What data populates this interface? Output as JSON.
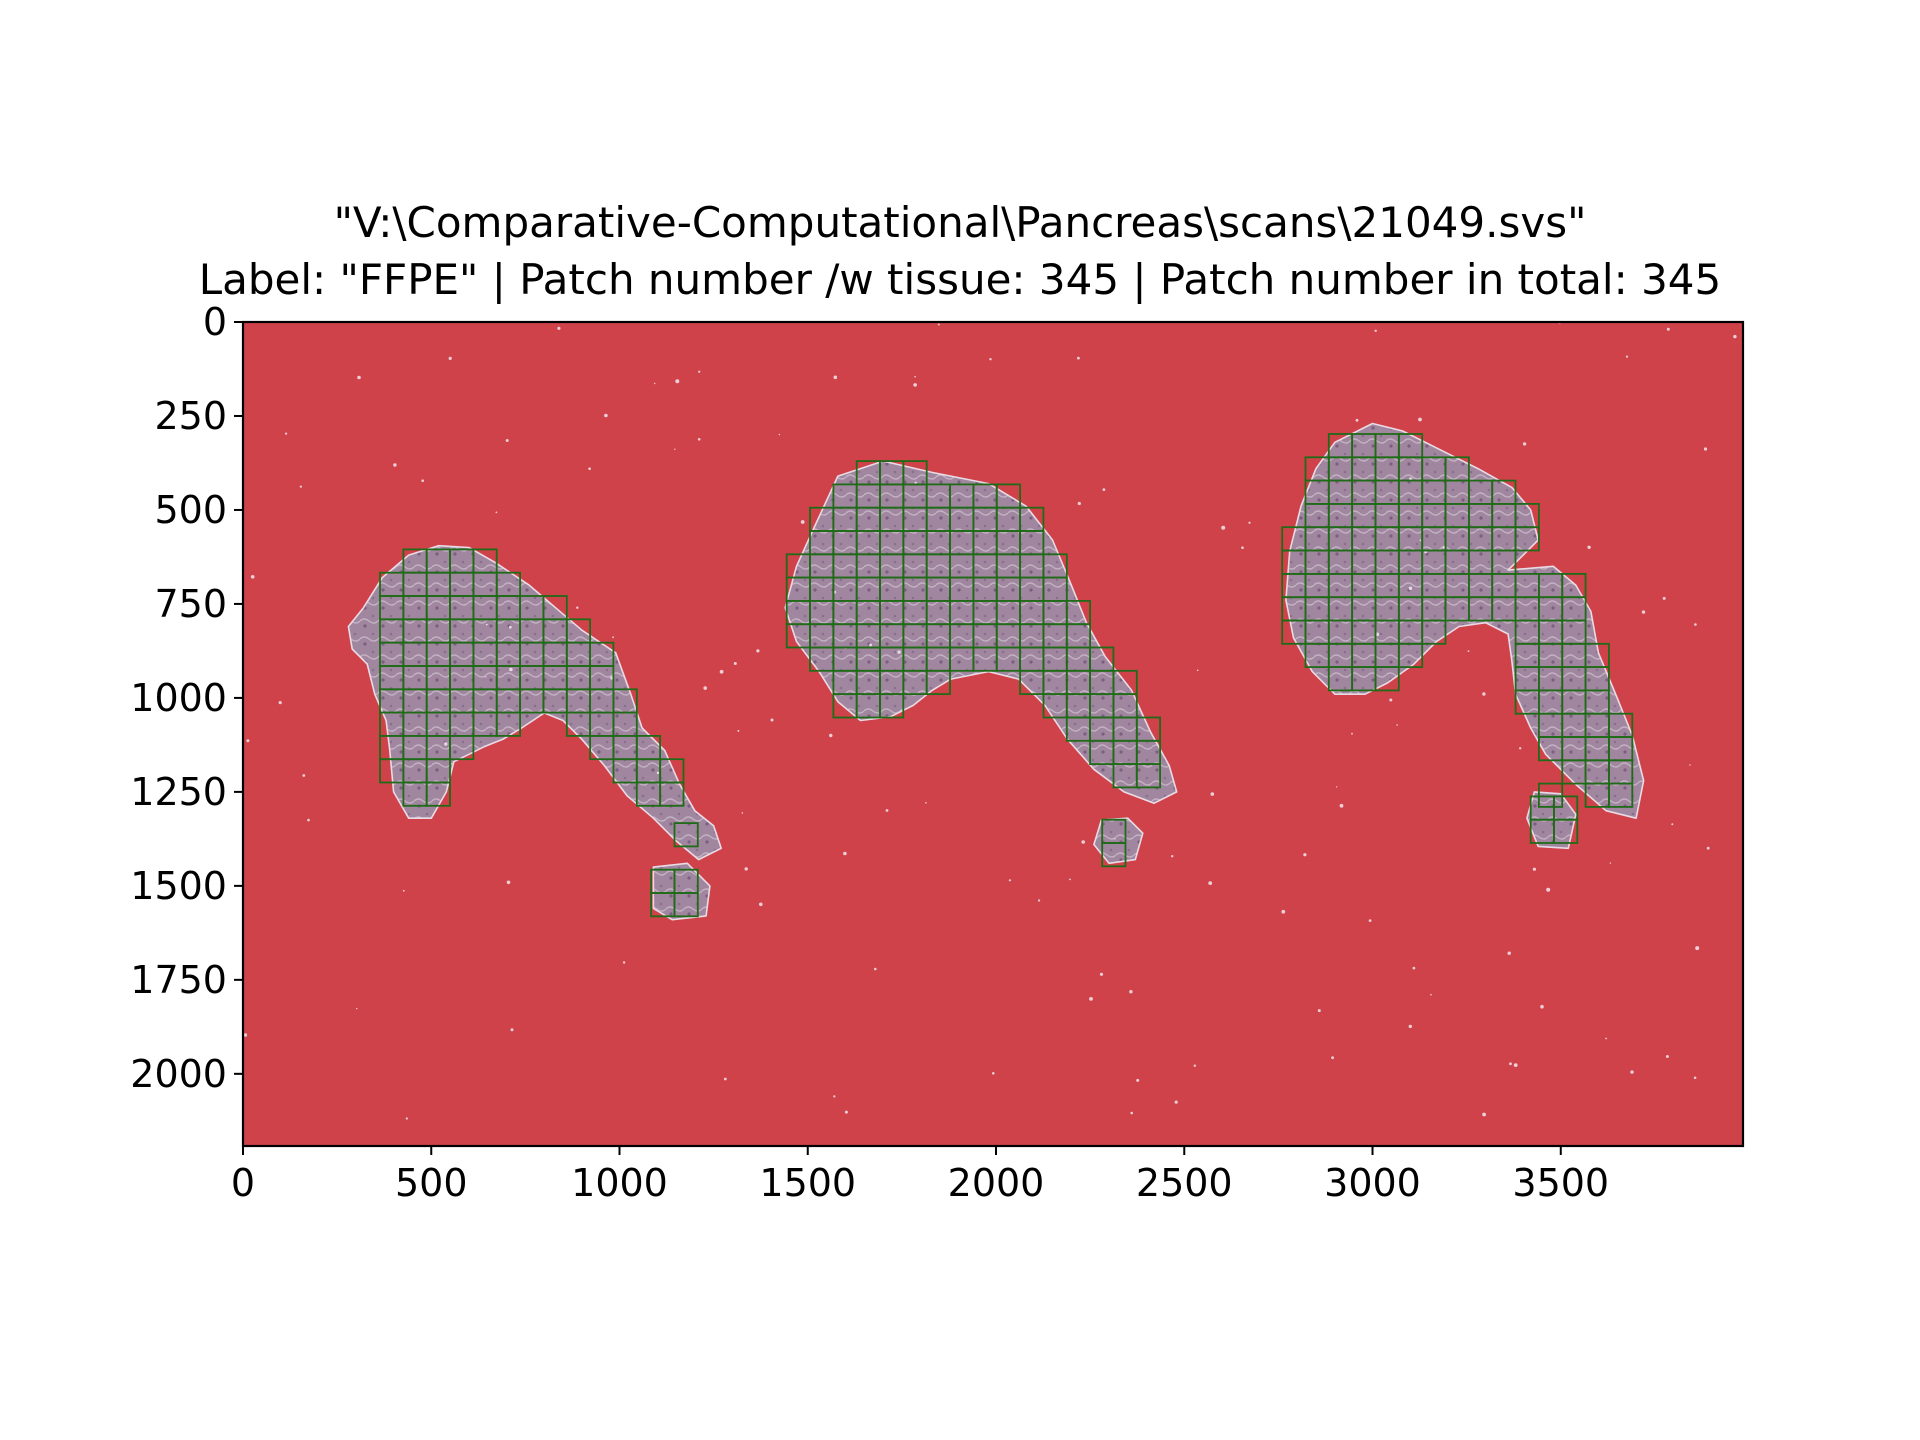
{
  "chart_data": {
    "type": "heatmap",
    "title_lines": [
      "\"V:\\Comparative-Computational\\Pancreas\\scans\\21049.svs\"",
      "Label: \"FFPE\" | Patch number /w tissue: 345 | Patch number in total: 345"
    ],
    "file_path": "\"V:\\Comparative-Computational\\Pancreas\\scans\\21049.svs\"",
    "label": "FFPE",
    "patch_count_with_tissue": 345,
    "patch_count_total": 345,
    "xlim": [
      0,
      3984
    ],
    "ylim": [
      2192,
      0
    ],
    "xticks": [
      0,
      500,
      1000,
      1500,
      2000,
      2500,
      3000,
      3500
    ],
    "yticks": [
      0,
      250,
      500,
      750,
      1000,
      1250,
      1500,
      1750,
      2000
    ],
    "grid": false,
    "colors": {
      "background": "#d0424a",
      "tissue": "#a0869e",
      "tissue_dark": "#7a5f80",
      "tissue_edge": "#e9dbe6",
      "patch_edge": "#1f6b17"
    },
    "patch_size": 62,
    "tissue_regions": [
      {
        "name": "left",
        "outline": [
          [
            520,
            595
          ],
          [
            600,
            600
          ],
          [
            670,
            640
          ],
          [
            760,
            700
          ],
          [
            830,
            760
          ],
          [
            900,
            820
          ],
          [
            990,
            880
          ],
          [
            1030,
            990
          ],
          [
            1060,
            1080
          ],
          [
            1120,
            1140
          ],
          [
            1160,
            1230
          ],
          [
            1200,
            1300
          ],
          [
            1250,
            1340
          ],
          [
            1270,
            1400
          ],
          [
            1210,
            1430
          ],
          [
            1150,
            1380
          ],
          [
            1090,
            1320
          ],
          [
            1020,
            1260
          ],
          [
            960,
            1180
          ],
          [
            900,
            1110
          ],
          [
            850,
            1060
          ],
          [
            800,
            1040
          ],
          [
            740,
            1080
          ],
          [
            690,
            1110
          ],
          [
            640,
            1130
          ],
          [
            560,
            1170
          ],
          [
            540,
            1250
          ],
          [
            500,
            1320
          ],
          [
            440,
            1320
          ],
          [
            400,
            1250
          ],
          [
            390,
            1140
          ],
          [
            380,
            1060
          ],
          [
            350,
            990
          ],
          [
            330,
            910
          ],
          [
            290,
            870
          ],
          [
            280,
            810
          ],
          [
            320,
            760
          ],
          [
            370,
            680
          ],
          [
            440,
            620
          ]
        ]
      },
      {
        "name": "left-fragment",
        "outline": [
          [
            1090,
            1450
          ],
          [
            1180,
            1440
          ],
          [
            1240,
            1500
          ],
          [
            1230,
            1580
          ],
          [
            1140,
            1590
          ],
          [
            1090,
            1560
          ]
        ]
      },
      {
        "name": "middle",
        "outline": [
          [
            1580,
            410
          ],
          [
            1700,
            370
          ],
          [
            1830,
            400
          ],
          [
            1980,
            430
          ],
          [
            2080,
            490
          ],
          [
            2150,
            580
          ],
          [
            2200,
            700
          ],
          [
            2240,
            800
          ],
          [
            2290,
            890
          ],
          [
            2360,
            980
          ],
          [
            2410,
            1090
          ],
          [
            2460,
            1180
          ],
          [
            2480,
            1250
          ],
          [
            2420,
            1280
          ],
          [
            2340,
            1250
          ],
          [
            2260,
            1190
          ],
          [
            2190,
            1110
          ],
          [
            2130,
            1020
          ],
          [
            2060,
            950
          ],
          [
            1980,
            930
          ],
          [
            1880,
            950
          ],
          [
            1830,
            980
          ],
          [
            1780,
            1020
          ],
          [
            1720,
            1050
          ],
          [
            1640,
            1060
          ],
          [
            1580,
            1010
          ],
          [
            1530,
            930
          ],
          [
            1470,
            850
          ],
          [
            1440,
            760
          ],
          [
            1470,
            650
          ],
          [
            1520,
            540
          ]
        ]
      },
      {
        "name": "middle-fragment",
        "outline": [
          [
            2280,
            1325
          ],
          [
            2350,
            1320
          ],
          [
            2390,
            1360
          ],
          [
            2370,
            1430
          ],
          [
            2300,
            1440
          ],
          [
            2260,
            1390
          ]
        ]
      },
      {
        "name": "right",
        "outline": [
          [
            2900,
            320
          ],
          [
            3000,
            270
          ],
          [
            3080,
            290
          ],
          [
            3180,
            340
          ],
          [
            3280,
            390
          ],
          [
            3370,
            440
          ],
          [
            3420,
            500
          ],
          [
            3440,
            580
          ],
          [
            3390,
            630
          ],
          [
            3360,
            660
          ],
          [
            3480,
            650
          ],
          [
            3540,
            700
          ],
          [
            3580,
            770
          ],
          [
            3600,
            880
          ],
          [
            3650,
            1000
          ],
          [
            3690,
            1100
          ],
          [
            3720,
            1220
          ],
          [
            3700,
            1320
          ],
          [
            3620,
            1300
          ],
          [
            3540,
            1230
          ],
          [
            3460,
            1150
          ],
          [
            3420,
            1080
          ],
          [
            3380,
            990
          ],
          [
            3370,
            900
          ],
          [
            3360,
            830
          ],
          [
            3300,
            800
          ],
          [
            3230,
            810
          ],
          [
            3170,
            850
          ],
          [
            3110,
            910
          ],
          [
            3040,
            960
          ],
          [
            2980,
            990
          ],
          [
            2900,
            990
          ],
          [
            2840,
            930
          ],
          [
            2790,
            840
          ],
          [
            2770,
            740
          ],
          [
            2780,
            610
          ],
          [
            2810,
            490
          ],
          [
            2850,
            390
          ]
        ]
      },
      {
        "name": "right-fragment",
        "outline": [
          [
            3430,
            1250
          ],
          [
            3500,
            1255
          ],
          [
            3540,
            1310
          ],
          [
            3520,
            1400
          ],
          [
            3440,
            1395
          ],
          [
            3410,
            1320
          ]
        ]
      }
    ],
    "patch_regions": [
      {
        "cols": [
          364,
          1186
        ],
        "rows": [
          605,
          1329
        ]
      },
      {
        "cols": [
          1084,
          1268
        ],
        "rows": [
          1333,
          1581
        ]
      },
      {
        "cols": [
          1444,
          2466
        ],
        "rows": [
          370,
          1286
        ]
      },
      {
        "cols": [
          2282,
          2404
        ],
        "rows": [
          1324,
          1448
        ]
      },
      {
        "cols": [
          2760,
          3720
        ],
        "rows": [
          298,
          1336
        ]
      },
      {
        "cols": [
          3420,
          3544
        ],
        "rows": [
          1262,
          1386
        ]
      }
    ]
  }
}
